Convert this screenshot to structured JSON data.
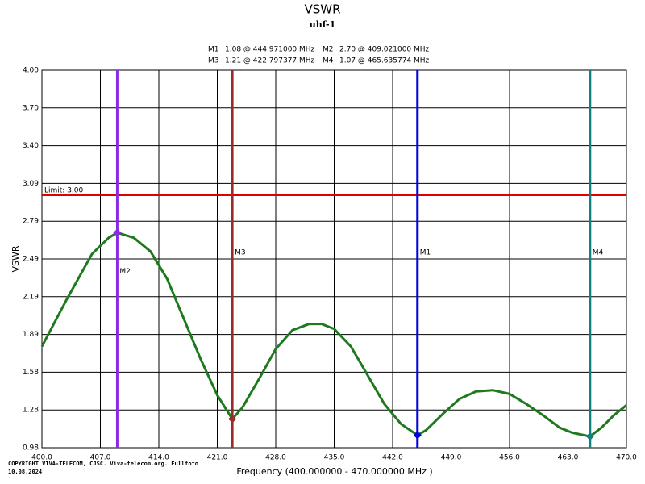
{
  "chart_data": {
    "type": "line",
    "title": "VSWR",
    "subtitle": "uhf-1",
    "y_label": "VSWR",
    "x_label": "Frequency (400.000000 - 470.000000 MHz )",
    "copyright": "COPYRIGHT VIVA-TELECOM, CJSC. Viva-telecom.org. Fullfoto",
    "date": "10.08.2024",
    "xlim": [
      400,
      470
    ],
    "ylim": [
      0.98,
      4.0
    ],
    "xticks": [
      {
        "value": 400,
        "label": "400.0"
      },
      {
        "value": 407,
        "label": "407.0"
      },
      {
        "value": 414,
        "label": "414.0"
      },
      {
        "value": 421,
        "label": "421.0"
      },
      {
        "value": 428,
        "label": "428.0"
      },
      {
        "value": 435,
        "label": "435.0"
      },
      {
        "value": 442,
        "label": "442.0"
      },
      {
        "value": 449,
        "label": "449.0"
      },
      {
        "value": 456,
        "label": "456.0"
      },
      {
        "value": 463,
        "label": "463.0"
      },
      {
        "value": 470,
        "label": "470.0"
      }
    ],
    "yticks": [
      {
        "value": 0.98,
        "label": "0.98"
      },
      {
        "value": 1.282,
        "label": "1.28"
      },
      {
        "value": 1.584,
        "label": "1.58"
      },
      {
        "value": 1.886,
        "label": "1.89"
      },
      {
        "value": 2.188,
        "label": "2.19"
      },
      {
        "value": 2.49,
        "label": "2.49"
      },
      {
        "value": 2.792,
        "label": "2.79"
      },
      {
        "value": 3.094,
        "label": "3.09"
      },
      {
        "value": 3.396,
        "label": "3.40"
      },
      {
        "value": 3.698,
        "label": "3.70"
      },
      {
        "value": 4.0,
        "label": "4.00"
      }
    ],
    "grid": true,
    "x": [
      400,
      403,
      406,
      408,
      409.021,
      411,
      413,
      415,
      417,
      419,
      421,
      422.797377,
      424,
      426,
      428,
      430,
      432,
      433.5,
      435,
      437,
      439,
      441,
      443,
      444.971,
      446,
      448,
      450,
      452,
      454,
      456,
      458,
      460,
      462,
      463.5,
      465.635774,
      467,
      468.5,
      470
    ],
    "series": [
      {
        "color": "#1f7a1f",
        "values": [
          1.79,
          2.17,
          2.53,
          2.66,
          2.7,
          2.66,
          2.55,
          2.33,
          2.01,
          1.69,
          1.4,
          1.21,
          1.3,
          1.53,
          1.77,
          1.92,
          1.97,
          1.97,
          1.93,
          1.79,
          1.56,
          1.33,
          1.17,
          1.08,
          1.12,
          1.25,
          1.37,
          1.43,
          1.44,
          1.41,
          1.33,
          1.24,
          1.14,
          1.1,
          1.07,
          1.14,
          1.24,
          1.32
        ]
      }
    ],
    "limit": {
      "value": 3.0,
      "label": "Limit: 3.00",
      "color": "#e00000"
    },
    "markers": [
      {
        "name": "M1",
        "x": 444.971,
        "value": 1.08,
        "legend_text": "1.08 @ 444.971000 MHz",
        "color": "#0000e0"
      },
      {
        "name": "M2",
        "x": 409.021,
        "value": 2.7,
        "legend_text": "2.70 @ 409.021000 MHz",
        "color": "#8a2be2"
      },
      {
        "name": "M3",
        "x": 422.797377,
        "value": 1.21,
        "legend_text": "1.21 @ 422.797377 MHz",
        "color": "#9b2b2b"
      },
      {
        "name": "M4",
        "x": 465.635774,
        "value": 1.07,
        "legend_text": "1.07 @ 465.635774 MHz",
        "color": "#108080"
      }
    ]
  }
}
